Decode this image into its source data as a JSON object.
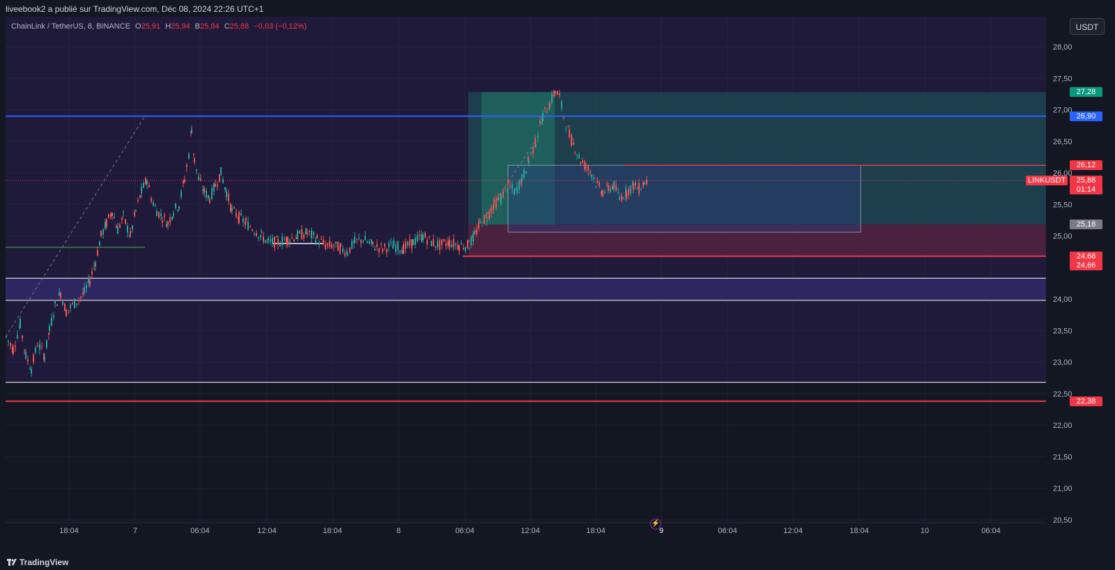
{
  "header": {
    "publisher_line": "liveebook2 a publié sur TradingView.com, Déc 08, 2024 22:26 UTC+1"
  },
  "legend": {
    "symbol": "ChainLink / TetherUS, 8, BINANCE",
    "o_label": "O",
    "o_value": "25,91",
    "h_label": "H",
    "h_value": "25,94",
    "b_label": "B",
    "b_value": "25,84",
    "c_label": "C",
    "c_value": "25,88",
    "change": "−0,03 (−0,12%)"
  },
  "currency_button": "USDT",
  "price_axis": {
    "ticks": [
      "28,00",
      "27,50",
      "27,00",
      "26,50",
      "26,00",
      "25,50",
      "25,00",
      "24,00",
      "23,50",
      "23,00",
      "22,50",
      "22,00",
      "21,50",
      "21,00",
      "20,50"
    ],
    "tick_values": [
      28.0,
      27.5,
      27.0,
      26.5,
      26.0,
      25.5,
      25.0,
      24.0,
      23.5,
      23.0,
      22.5,
      22.0,
      21.5,
      21.0,
      20.5
    ]
  },
  "price_tags": [
    {
      "label": "27,28",
      "value": 27.28,
      "color": "#089981"
    },
    {
      "label": "26,90",
      "value": 26.9,
      "color": "#2962ff"
    },
    {
      "label": "26,12",
      "value": 26.12,
      "color": "#f23645"
    },
    {
      "label": "25,88",
      "value": 25.88,
      "color": "#f23645"
    },
    {
      "label": "01:14",
      "value": 25.74,
      "color": "#f23645"
    },
    {
      "label": "25,18",
      "value": 25.18,
      "color": "#787b86"
    },
    {
      "label": "24,68",
      "value": 24.68,
      "color": "#f23645"
    },
    {
      "label": "24,66",
      "value": 24.53,
      "color": "#f23645"
    },
    {
      "label": "22,38",
      "value": 22.38,
      "color": "#f23645"
    }
  ],
  "symbol_tag": "LINKUSDT",
  "time_axis": {
    "labels": [
      "18:04",
      "7",
      "06:04",
      "12:04",
      "18:04",
      "8",
      "06:04",
      "12:04",
      "18:04",
      "9",
      "06:04",
      "12:04",
      "18:04",
      "10",
      "06:04"
    ],
    "bold": [
      false,
      false,
      false,
      false,
      false,
      false,
      false,
      false,
      false,
      true,
      false,
      false,
      false,
      false,
      false
    ]
  },
  "levels": {
    "resistance_blue": 26.9,
    "range_high_white": 24.33,
    "range_low_white": 23.98,
    "support_white": 22.68,
    "support_red": 22.38,
    "stop_red": 24.68,
    "target_red": 26.12,
    "entry": 25.18,
    "take_profit": 27.28
  },
  "chart_data": {
    "type": "candlestick",
    "symbol": "LINKUSDT",
    "interval": "8",
    "ylim": [
      20.5,
      28.2
    ],
    "last_price": 25.88,
    "close_path": [
      [
        0,
        23.4
      ],
      [
        10,
        23.2
      ],
      [
        20,
        23.6
      ],
      [
        28,
        23.1
      ],
      [
        36,
        22.9
      ],
      [
        45,
        23.3
      ],
      [
        55,
        23.1
      ],
      [
        62,
        23.5
      ],
      [
        70,
        23.9
      ],
      [
        78,
        24.1
      ],
      [
        86,
        23.8
      ],
      [
        95,
        23.9
      ],
      [
        104,
        24.0
      ],
      [
        112,
        24.1
      ],
      [
        120,
        24.3
      ],
      [
        128,
        24.6
      ],
      [
        136,
        25.0
      ],
      [
        144,
        25.2
      ],
      [
        152,
        25.4
      ],
      [
        160,
        25.1
      ],
      [
        168,
        25.3
      ],
      [
        178,
        25.0
      ],
      [
        186,
        25.4
      ],
      [
        194,
        25.7
      ],
      [
        202,
        25.9
      ],
      [
        208,
        25.6
      ],
      [
        216,
        25.4
      ],
      [
        224,
        25.3
      ],
      [
        232,
        25.2
      ],
      [
        240,
        25.4
      ],
      [
        248,
        25.5
      ],
      [
        256,
        25.9
      ],
      [
        262,
        26.3
      ],
      [
        266,
        26.7
      ],
      [
        270,
        26.2
      ],
      [
        276,
        25.9
      ],
      [
        284,
        25.7
      ],
      [
        292,
        25.6
      ],
      [
        300,
        25.8
      ],
      [
        308,
        26.0
      ],
      [
        316,
        25.7
      ],
      [
        324,
        25.4
      ],
      [
        334,
        25.3
      ],
      [
        344,
        25.2
      ],
      [
        356,
        25.1
      ],
      [
        366,
        25.0
      ],
      [
        376,
        24.9
      ],
      [
        390,
        24.9
      ],
      [
        404,
        24.95
      ],
      [
        418,
        25.0
      ],
      [
        432,
        25.05
      ],
      [
        446,
        24.95
      ],
      [
        458,
        24.85
      ],
      [
        470,
        24.85
      ],
      [
        480,
        24.8
      ],
      [
        490,
        24.75
      ],
      [
        500,
        24.9
      ],
      [
        512,
        24.95
      ],
      [
        526,
        24.85
      ],
      [
        540,
        24.8
      ],
      [
        556,
        24.85
      ],
      [
        570,
        24.8
      ],
      [
        584,
        24.9
      ],
      [
        598,
        25.0
      ],
      [
        610,
        24.9
      ],
      [
        622,
        24.85
      ],
      [
        636,
        24.9
      ],
      [
        650,
        24.85
      ],
      [
        664,
        24.85
      ],
      [
        672,
        25.0
      ],
      [
        680,
        25.2
      ],
      [
        690,
        25.3
      ],
      [
        700,
        25.5
      ],
      [
        710,
        25.6
      ],
      [
        720,
        25.8
      ],
      [
        730,
        25.7
      ],
      [
        740,
        25.9
      ],
      [
        750,
        26.2
      ],
      [
        760,
        26.5
      ],
      [
        770,
        26.9
      ],
      [
        780,
        27.1
      ],
      [
        788,
        27.3
      ],
      [
        794,
        27.2
      ],
      [
        800,
        26.9
      ],
      [
        808,
        26.6
      ],
      [
        816,
        26.4
      ],
      [
        824,
        26.2
      ],
      [
        832,
        26.1
      ],
      [
        840,
        26.0
      ],
      [
        848,
        25.8
      ],
      [
        856,
        25.7
      ],
      [
        864,
        25.75
      ],
      [
        872,
        25.8
      ],
      [
        880,
        25.6
      ],
      [
        890,
        25.7
      ],
      [
        900,
        25.8
      ],
      [
        908,
        25.75
      ],
      [
        916,
        25.85
      ],
      [
        922,
        25.88
      ]
    ]
  }
}
